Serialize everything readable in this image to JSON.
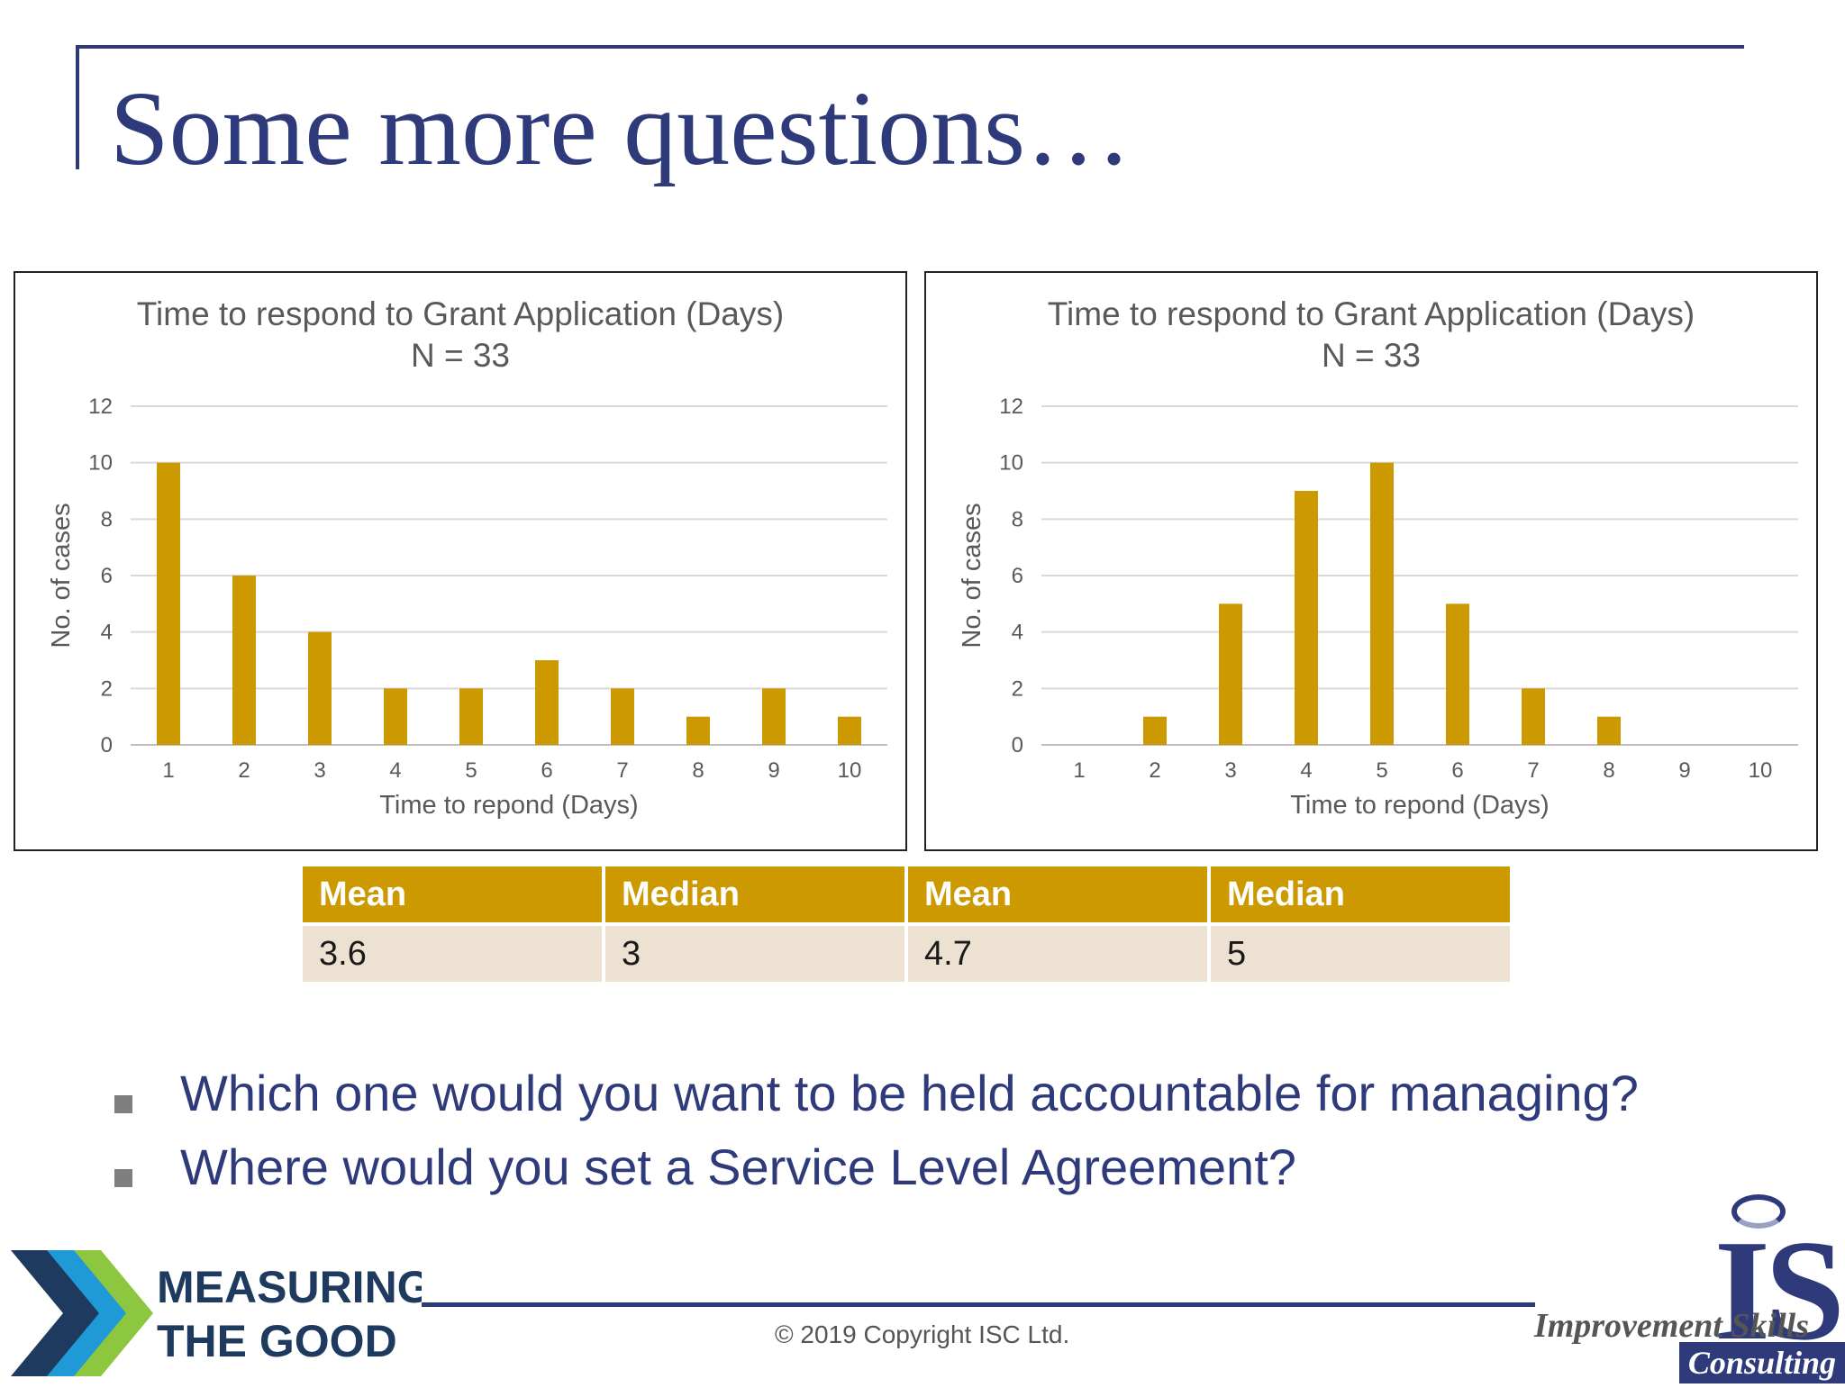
{
  "title": "Some more questions…",
  "chart_data": [
    {
      "type": "bar",
      "title": "Time to respond to Grant Application (Days)",
      "subtitle": "N = 33",
      "xlabel": "Time to repond (Days)",
      "ylabel": "No. of cases",
      "categories": [
        "1",
        "2",
        "3",
        "4",
        "5",
        "6",
        "7",
        "8",
        "9",
        "10"
      ],
      "values": [
        10,
        6,
        4,
        2,
        2,
        3,
        2,
        1,
        2,
        1
      ],
      "ylim": [
        0,
        12
      ],
      "yticks": [
        "0",
        "2",
        "4",
        "6",
        "8",
        "10",
        "12"
      ],
      "grid": true,
      "color": "#cc9900"
    },
    {
      "type": "bar",
      "title": "Time to respond to Grant Application (Days)",
      "subtitle": "N = 33",
      "xlabel": "Time to repond (Days)",
      "ylabel": "No. of cases",
      "categories": [
        "1",
        "2",
        "3",
        "4",
        "5",
        "6",
        "7",
        "8",
        "9",
        "10"
      ],
      "values": [
        0,
        1,
        5,
        9,
        10,
        5,
        2,
        1,
        0,
        0
      ],
      "ylim": [
        0,
        12
      ],
      "yticks": [
        "0",
        "2",
        "4",
        "6",
        "8",
        "10",
        "12"
      ],
      "grid": true,
      "color": "#cc9900"
    }
  ],
  "stats_table": {
    "headers": [
      "Mean",
      "Median",
      "Mean",
      "Median"
    ],
    "values": [
      "3.6",
      "3",
      "4.7",
      "5"
    ]
  },
  "bullets": [
    "Which one would you want to be held accountable for managing?",
    "Where would you set a Service Level Agreement?"
  ],
  "footer": {
    "copyright": "© 2019 Copyright ISC Ltd."
  },
  "logos": {
    "left": {
      "line1": "MEASURING",
      "line2": "THE GOOD",
      "colors": [
        "#1f3a5f",
        "#1f9ad6",
        "#8dc63f"
      ]
    },
    "right": {
      "letters": "IS",
      "line1": "Improvement Skills",
      "line2": "Consulting"
    }
  },
  "colors": {
    "accent": "#2f3a7a",
    "bar": "#cc9900",
    "header": "#cc9900",
    "cell": "#ede1d1"
  }
}
